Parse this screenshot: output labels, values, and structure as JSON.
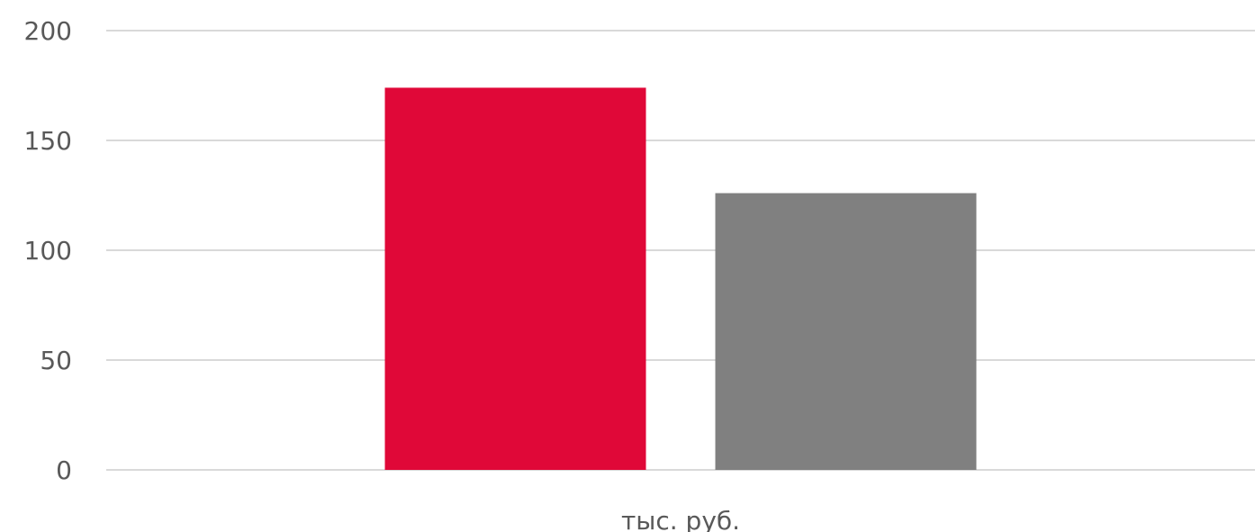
{
  "chart_data": {
    "type": "bar",
    "categories": [
      "тыс. руб."
    ],
    "series": [
      {
        "values": [
          174
        ],
        "color": "#e00838"
      },
      {
        "values": [
          126
        ],
        "color": "#808080"
      }
    ],
    "title": "",
    "xlabel": "",
    "ylabel": "",
    "ylim": [
      0,
      200
    ],
    "yticks": [
      "0",
      "50",
      "100",
      "150",
      "200"
    ],
    "grid": true,
    "legend": "none"
  }
}
